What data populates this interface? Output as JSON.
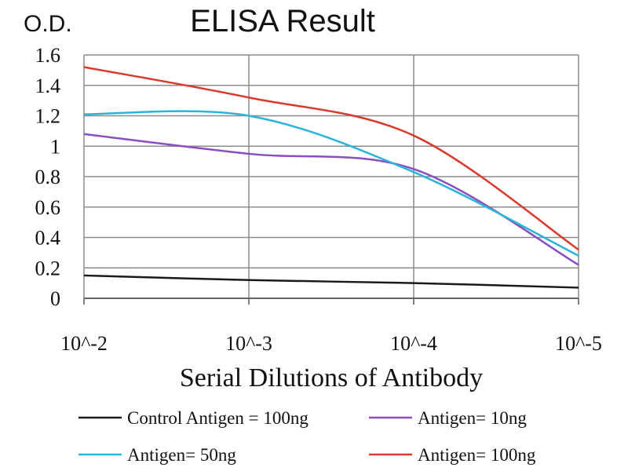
{
  "chart_data": {
    "type": "line",
    "title": "ELISA Result",
    "ylabel": "O.D.",
    "xlabel": "Serial Dilutions of Antibody",
    "categories": [
      "10^-2",
      "10^-3",
      "10^-4",
      "10^-5"
    ],
    "ylim": [
      0,
      1.6
    ],
    "yticks": [
      "0",
      "0.2",
      "0.4",
      "0.6",
      "0.8",
      "1",
      "1.2",
      "1.4",
      "1.6"
    ],
    "grid": true,
    "legend_position": "bottom",
    "series": [
      {
        "name": "Control Antigen = 100ng",
        "color": "#1a1a1a",
        "values": [
          0.15,
          0.12,
          0.1,
          0.07
        ]
      },
      {
        "name": "Antigen= 10ng",
        "color": "#8a4fbf",
        "values": [
          1.08,
          0.95,
          0.85,
          0.22
        ]
      },
      {
        "name": "Antigen= 50ng",
        "color": "#2bb3d9",
        "values": [
          1.21,
          1.2,
          0.83,
          0.28
        ]
      },
      {
        "name": "Antigen= 100ng",
        "color": "#d93a2b",
        "values": [
          1.52,
          1.32,
          1.07,
          0.32
        ]
      }
    ]
  }
}
